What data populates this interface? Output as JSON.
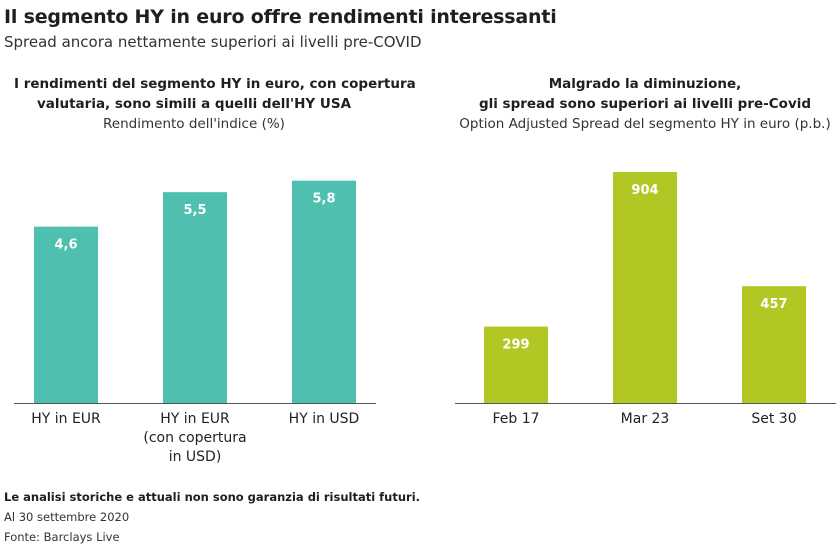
{
  "header": {
    "title": "Il segmento HY in euro offre rendimenti interessanti",
    "subtitle": "Spread ancora nettamente superiori ai livelli pre-COVID"
  },
  "footer": {
    "disclaimer": "Le analisi storiche e attuali non sono garanzia di risultati futuri.",
    "date": "Al 30 settembre 2020",
    "source": "Fonte: Barclays Live"
  },
  "colors": {
    "teal": "#4fc0b0",
    "green": "#b3c724",
    "axis": "#555555",
    "label": "#ffffff"
  },
  "chart_data": [
    {
      "type": "bar",
      "title": "I rendimenti del segmento HY in euro, con copertura valutaria, sono simili a quelli dell'HY USA",
      "title_lines": [
        "I rendimenti del segmento HY in euro, con copertura",
        "valutaria, sono simili a quelli dell'HY USA"
      ],
      "subtitle": "Rendimento dell'indice (%)",
      "categories": [
        "HY in EUR",
        "HY in EUR (con copertura in USD)",
        "HY in USD"
      ],
      "category_lines": [
        [
          "HY in EUR"
        ],
        [
          "HY in EUR",
          "(con copertura",
          "in USD)"
        ],
        [
          "HY in USD"
        ]
      ],
      "values": [
        4.6,
        5.5,
        5.8
      ],
      "value_labels": [
        "4,6",
        "5,5",
        "5,8"
      ],
      "ylim": [
        0,
        6.6
      ],
      "grid": false,
      "color": "#4fc0b0"
    },
    {
      "type": "bar",
      "title": "Malgrado la diminuzione, gli spread sono superiori ai livelli pre-Covid",
      "title_lines": [
        "Malgrado la diminuzione,",
        "gli spread sono superiori ai livelli pre-Covid"
      ],
      "subtitle": "Option Adjusted Spread del segmento HY in euro (p.b.)",
      "categories": [
        "Feb 17",
        "Mar 23",
        "Set 30"
      ],
      "category_lines": [
        [
          "Feb 17"
        ],
        [
          "Mar 23"
        ],
        [
          "Set 30"
        ]
      ],
      "values": [
        299,
        904,
        457
      ],
      "value_labels": [
        "299",
        "904",
        "457"
      ],
      "ylim": [
        0,
        990
      ],
      "grid": false,
      "color": "#b3c724"
    }
  ]
}
